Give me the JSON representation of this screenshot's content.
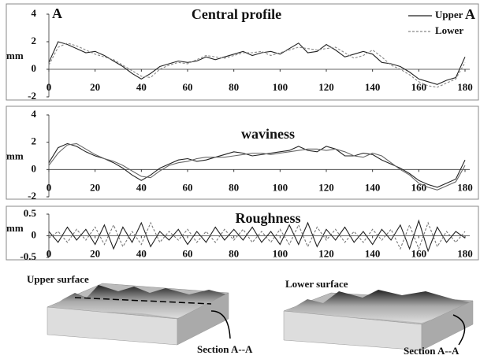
{
  "chart_data": [
    {
      "type": "line",
      "title": "Central profile",
      "ylabel": "mm",
      "panel_label": "A",
      "section_label": "A",
      "x": [
        0,
        4,
        8,
        12,
        16,
        20,
        24,
        28,
        32,
        36,
        40,
        44,
        48,
        52,
        56,
        60,
        64,
        68,
        72,
        76,
        80,
        84,
        88,
        92,
        96,
        100,
        104,
        108,
        112,
        116,
        120,
        124,
        128,
        132,
        136,
        140,
        144,
        148,
        152,
        156,
        160,
        164,
        168,
        172,
        176,
        180
      ],
      "series": [
        {
          "name": "Upper",
          "color": "#222222",
          "style": "solid",
          "values": [
            0.5,
            2.0,
            1.8,
            1.5,
            1.2,
            1.3,
            1.0,
            0.6,
            0.2,
            -0.3,
            -0.7,
            -0.3,
            0.2,
            0.4,
            0.6,
            0.5,
            0.6,
            0.9,
            0.7,
            0.9,
            1.1,
            1.3,
            1.0,
            1.2,
            1.3,
            1.1,
            1.5,
            1.9,
            1.2,
            1.3,
            1.8,
            1.4,
            0.9,
            1.1,
            1.3,
            1.1,
            0.5,
            0.4,
            0.2,
            -0.2,
            -0.7,
            -0.9,
            -1.1,
            -0.8,
            -0.6,
            0.9
          ]
        },
        {
          "name": "Lower",
          "color": "#888888",
          "style": "dashed",
          "values": [
            0.3,
            1.6,
            1.9,
            1.7,
            1.4,
            1.1,
            0.9,
            0.7,
            0.3,
            -0.1,
            -0.5,
            -0.6,
            0.0,
            0.3,
            0.5,
            0.4,
            0.7,
            1.0,
            0.9,
            0.8,
            1.0,
            1.2,
            1.2,
            1.3,
            1.0,
            1.2,
            1.4,
            1.6,
            1.5,
            1.4,
            1.5,
            1.6,
            1.2,
            0.8,
            1.0,
            1.4,
            0.9,
            0.3,
            0.0,
            -0.4,
            -0.9,
            -1.2,
            -1.3,
            -1.0,
            -0.7,
            0.5
          ]
        }
      ],
      "xlim": [
        0,
        180
      ],
      "xticks": [
        0,
        20,
        40,
        60,
        80,
        100,
        120,
        140,
        160,
        180
      ],
      "ylim": [
        -2,
        4
      ],
      "yticks": [
        -2,
        0,
        2,
        4
      ]
    },
    {
      "type": "line",
      "title": "waviness",
      "ylabel": "mm",
      "x": [
        0,
        4,
        8,
        12,
        16,
        20,
        24,
        28,
        32,
        36,
        40,
        44,
        48,
        52,
        56,
        60,
        64,
        68,
        72,
        76,
        80,
        84,
        88,
        92,
        96,
        100,
        104,
        108,
        112,
        116,
        120,
        124,
        128,
        132,
        136,
        140,
        144,
        148,
        152,
        156,
        160,
        164,
        168,
        172,
        176,
        180
      ],
      "series": [
        {
          "color": "#222222",
          "style": "solid",
          "values": [
            0.5,
            1.6,
            1.9,
            1.7,
            1.3,
            1.0,
            0.8,
            0.5,
            0.1,
            -0.4,
            -0.8,
            -0.4,
            0.1,
            0.4,
            0.7,
            0.8,
            0.6,
            0.7,
            0.9,
            1.1,
            1.3,
            1.2,
            1.0,
            1.1,
            1.2,
            1.3,
            1.4,
            1.7,
            1.4,
            1.3,
            1.7,
            1.5,
            1.0,
            1.0,
            1.2,
            1.1,
            0.7,
            0.4,
            0.1,
            -0.3,
            -0.8,
            -1.1,
            -1.3,
            -1.0,
            -0.7,
            0.7
          ]
        },
        {
          "color": "#666666",
          "style": "solid",
          "values": [
            0.3,
            1.2,
            1.8,
            1.9,
            1.5,
            1.1,
            0.8,
            0.6,
            0.3,
            -0.1,
            -0.5,
            -0.6,
            -0.1,
            0.3,
            0.5,
            0.6,
            0.8,
            0.9,
            0.9,
            0.9,
            1.0,
            1.1,
            1.2,
            1.2,
            1.1,
            1.2,
            1.3,
            1.4,
            1.5,
            1.5,
            1.4,
            1.5,
            1.3,
            1.0,
            0.9,
            1.2,
            1.0,
            0.5,
            0.0,
            -0.4,
            -1.0,
            -1.3,
            -1.5,
            -1.2,
            -0.9,
            0.3
          ]
        }
      ],
      "xlim": [
        0,
        180
      ],
      "xticks": [
        0,
        20,
        40,
        60,
        80,
        100,
        120,
        140,
        160,
        180
      ],
      "ylim": [
        -2,
        4
      ],
      "yticks": [
        -2,
        0,
        2,
        4
      ]
    },
    {
      "type": "line",
      "title": "Roughness",
      "ylabel": "mm",
      "x": [
        0,
        4,
        8,
        12,
        16,
        20,
        24,
        28,
        32,
        36,
        40,
        44,
        48,
        52,
        56,
        60,
        64,
        68,
        72,
        76,
        80,
        84,
        88,
        92,
        96,
        100,
        104,
        108,
        112,
        116,
        120,
        124,
        128,
        132,
        136,
        140,
        144,
        148,
        152,
        156,
        160,
        164,
        168,
        172,
        176,
        180
      ],
      "series": [
        {
          "color": "#222222",
          "style": "solid",
          "values": [
            0.1,
            -0.15,
            0.2,
            -0.1,
            0.15,
            -0.2,
            0.25,
            -0.3,
            0.2,
            -0.15,
            0.3,
            -0.25,
            0.1,
            -0.1,
            0.15,
            -0.2,
            0.1,
            -0.15,
            0.2,
            -0.1,
            0.15,
            -0.1,
            0.2,
            -0.15,
            0.1,
            -0.2,
            0.25,
            -0.2,
            0.3,
            -0.25,
            0.15,
            -0.1,
            0.2,
            -0.15,
            0.1,
            -0.2,
            0.15,
            -0.1,
            0.25,
            -0.3,
            0.35,
            -0.35,
            0.2,
            -0.15,
            0.1,
            -0.05
          ]
        },
        {
          "color": "#777777",
          "style": "dashed",
          "values": [
            -0.05,
            0.1,
            -0.15,
            0.15,
            -0.1,
            0.2,
            -0.2,
            0.25,
            -0.25,
            0.1,
            -0.2,
            0.3,
            -0.15,
            0.1,
            -0.1,
            0.15,
            -0.15,
            0.1,
            -0.15,
            0.15,
            -0.1,
            0.15,
            -0.15,
            0.1,
            -0.15,
            0.15,
            -0.2,
            0.25,
            -0.25,
            0.2,
            -0.1,
            0.15,
            -0.15,
            0.1,
            -0.15,
            0.15,
            -0.1,
            0.15,
            -0.3,
            0.25,
            -0.3,
            0.3,
            -0.25,
            0.1,
            -0.15,
            0.1
          ]
        }
      ],
      "xlim": [
        0,
        180
      ],
      "xticks": [
        0,
        20,
        40,
        60,
        80,
        100,
        120,
        140,
        160,
        180
      ],
      "ylim": [
        -0.5,
        0.5
      ],
      "yticks": [
        -0.5,
        0,
        0.5
      ]
    }
  ],
  "surfaces": [
    {
      "title": "Upper surface",
      "section": "Section A--A"
    },
    {
      "title": "Lower surface",
      "section": "Section A--A"
    }
  ]
}
